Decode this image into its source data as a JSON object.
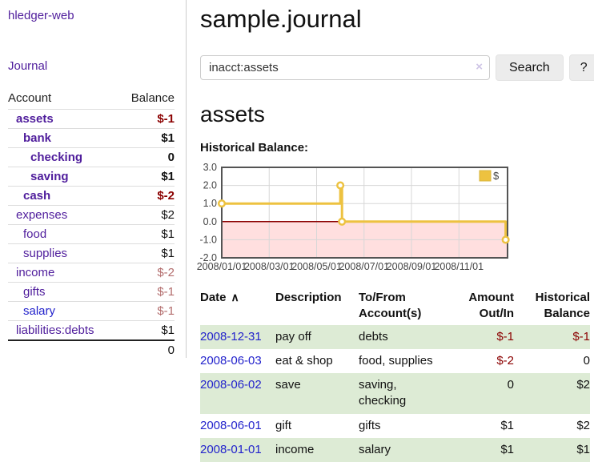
{
  "colors": {
    "purple": "#4f1d9c",
    "link_blue": "#2323cc",
    "neg_strong": "#8b0000",
    "neg_muted": "#b36d6d",
    "stripe_green": "#ddebd5",
    "chart_line": "#EDC240",
    "chart_neg_fill": "#ffdfdf",
    "chart_zero_line": "#8b0000"
  },
  "sidebar": {
    "brand": "hledger-web",
    "journal_link": "Journal",
    "accounts_header": {
      "account": "Account",
      "balance": "Balance"
    },
    "accounts": [
      {
        "name": "assets",
        "balance": "$-1",
        "depth": 0,
        "bold": true,
        "neg": "strong"
      },
      {
        "name": "bank",
        "balance": "$1",
        "depth": 1,
        "bold": true,
        "neg": null
      },
      {
        "name": "checking",
        "balance": "0",
        "depth": 2,
        "bold": true,
        "neg": null
      },
      {
        "name": "saving",
        "balance": "$1",
        "depth": 2,
        "bold": true,
        "neg": null
      },
      {
        "name": "cash",
        "balance": "$-2",
        "depth": 1,
        "bold": true,
        "neg": "strong"
      },
      {
        "name": "expenses",
        "balance": "$2",
        "depth": 0,
        "bold": false,
        "neg": null
      },
      {
        "name": "food",
        "balance": "$1",
        "depth": 1,
        "bold": false,
        "neg": null
      },
      {
        "name": "supplies",
        "balance": "$1",
        "depth": 1,
        "bold": false,
        "neg": null
      },
      {
        "name": "income",
        "balance": "$-2",
        "depth": 0,
        "bold": false,
        "neg": "muted"
      },
      {
        "name": "gifts",
        "balance": "$-1",
        "depth": 1,
        "bold": false,
        "neg": "muted"
      },
      {
        "name": "salary",
        "balance": "$-1",
        "depth": 1,
        "bold": false,
        "neg": "muted",
        "blue": true
      },
      {
        "name": "liabilities:debts",
        "balance": "$1",
        "depth": 0,
        "bold": false,
        "neg": null
      }
    ],
    "total": "0"
  },
  "main": {
    "title": "sample.journal",
    "search": {
      "value": "inacct:assets",
      "clear_icon": "×",
      "button": "Search",
      "help": "?"
    },
    "account_heading": "assets",
    "chart_heading": "Historical Balance:"
  },
  "chart_data": {
    "type": "line",
    "title": "Historical Balance",
    "step": true,
    "grid": true,
    "legend_position": "top-right",
    "legend": [
      {
        "label": "$",
        "color": "#EDC240"
      }
    ],
    "ylim": [
      -2,
      3
    ],
    "y_ticks": [
      3.0,
      2.0,
      1.0,
      0.0,
      -1.0,
      -2.0
    ],
    "xlim_months": [
      0,
      12.05
    ],
    "x_tick_months": [
      0,
      2,
      4,
      6,
      8,
      10
    ],
    "x_tick_labels": [
      "2008/01/01",
      "2008/03/01",
      "2008/05/01",
      "2008/07/01",
      "2008/09/01",
      "2008/11/01"
    ],
    "negative_region_shaded": true,
    "series": [
      {
        "name": "$",
        "points": [
          {
            "date": "2008-01-01",
            "month": 0,
            "value": 1
          },
          {
            "date": "2008-06-01",
            "month": 5,
            "value": 2
          },
          {
            "date": "2008-06-03",
            "month": 5.07,
            "value": 0
          },
          {
            "date": "2008-12-31",
            "month": 11.97,
            "value": -1
          }
        ]
      }
    ]
  },
  "register": {
    "headers": [
      "Date",
      "Description",
      "To/From Account(s)",
      "Amount Out/In",
      "Historical Balance"
    ],
    "sort_icon": "∧",
    "rows": [
      {
        "date": "2008-12-31",
        "description": "pay off",
        "accounts": "debts",
        "amount": "$-1",
        "amount_neg": true,
        "balance": "$-1",
        "balance_neg": true
      },
      {
        "date": "2008-06-03",
        "description": "eat & shop",
        "accounts": "food, supplies",
        "amount": "$-2",
        "amount_neg": true,
        "balance": "0",
        "balance_neg": false
      },
      {
        "date": "2008-06-02",
        "description": "save",
        "accounts": "saving, checking",
        "amount": "0",
        "amount_neg": false,
        "balance": "$2",
        "balance_neg": false
      },
      {
        "date": "2008-06-01",
        "description": "gift",
        "accounts": "gifts",
        "amount": "$1",
        "amount_neg": false,
        "balance": "$2",
        "balance_neg": false
      },
      {
        "date": "2008-01-01",
        "description": "income",
        "accounts": "salary",
        "amount": "$1",
        "amount_neg": false,
        "balance": "$1",
        "balance_neg": false
      }
    ]
  }
}
